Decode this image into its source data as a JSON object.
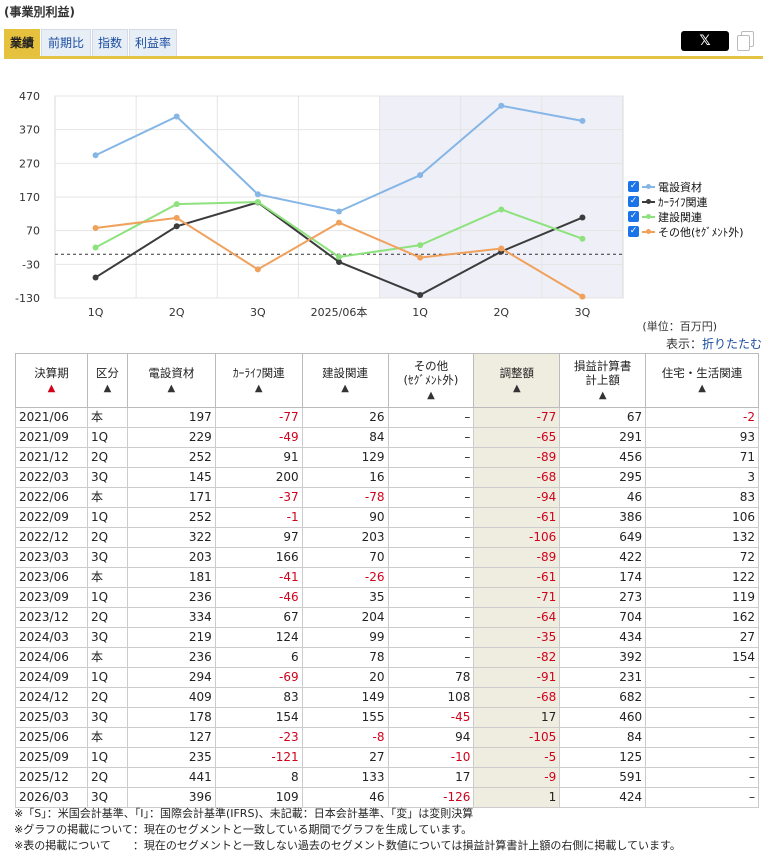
{
  "page_title": "(事業別利益)",
  "tabs": [
    {
      "label": "業績",
      "active": true
    },
    {
      "label": "前期比",
      "active": false
    },
    {
      "label": "指数",
      "active": false
    },
    {
      "label": "利益率",
      "active": false
    }
  ],
  "share": {
    "x_label": "𝕏"
  },
  "chart_data": {
    "type": "line",
    "categories": [
      "1Q",
      "2Q",
      "3Q",
      "2025/06本",
      "1Q",
      "2Q",
      "3Q"
    ],
    "y_ticks": [
      470,
      370,
      270,
      170,
      70,
      -30,
      -130
    ],
    "ylim": [
      -130,
      470
    ],
    "shaded_from_index": 4,
    "zero_line": 0,
    "series": [
      {
        "name": "電設資材",
        "color": "#86b6e6",
        "values": [
          294,
          409,
          178,
          127,
          235,
          441,
          396
        ]
      },
      {
        "name": "ｶｰﾗｲﾌ関連",
        "color": "#3c3c3c",
        "values": [
          -69,
          83,
          154,
          -23,
          -121,
          8,
          109
        ]
      },
      {
        "name": "建設関連",
        "color": "#8ee27d",
        "values": [
          20,
          149,
          155,
          -8,
          27,
          133,
          46
        ]
      },
      {
        "name": "その他(ｾｸﾞﾒﾝﾄ外)",
        "color": "#f0a15c",
        "values": [
          78,
          108,
          -45,
          94,
          -10,
          17,
          -126
        ]
      }
    ]
  },
  "unit_label": "(単位：百万円)",
  "display_label": "表示：",
  "collapse_link": "折りたたむ",
  "table": {
    "headers": [
      {
        "label": "決算期",
        "tri": "▲",
        "tri_red": true
      },
      {
        "label": "区分",
        "tri": "▲"
      },
      {
        "label": "電設資材",
        "tri": "▲"
      },
      {
        "label": "ｶｰﾗｲﾌ関連",
        "tri": "▲"
      },
      {
        "label": "建設関連",
        "tri": "▲"
      },
      {
        "label": "その他",
        "label2": "(ｾｸﾞﾒﾝﾄ外)",
        "tri": "▲"
      },
      {
        "label": "調整額",
        "tri": "▲"
      },
      {
        "label": "損益計算書",
        "label2": "計上額",
        "tri": "▲"
      },
      {
        "label": "住宅・生活関連",
        "tri": "▲"
      }
    ],
    "rows": [
      [
        "2021/06",
        "本",
        "197",
        "-77",
        "26",
        "–",
        "-77",
        "67",
        "-2"
      ],
      [
        "2021/09",
        "1Q",
        "229",
        "-49",
        "84",
        "–",
        "-65",
        "291",
        "93"
      ],
      [
        "2021/12",
        "2Q",
        "252",
        "91",
        "129",
        "–",
        "-89",
        "456",
        "71"
      ],
      [
        "2022/03",
        "3Q",
        "145",
        "200",
        "16",
        "–",
        "-68",
        "295",
        "3"
      ],
      [
        "2022/06",
        "本",
        "171",
        "-37",
        "-78",
        "–",
        "-94",
        "46",
        "83"
      ],
      [
        "2022/09",
        "1Q",
        "252",
        "-1",
        "90",
        "–",
        "-61",
        "386",
        "106"
      ],
      [
        "2022/12",
        "2Q",
        "322",
        "97",
        "203",
        "–",
        "-106",
        "649",
        "132"
      ],
      [
        "2023/03",
        "3Q",
        "203",
        "166",
        "70",
        "–",
        "-89",
        "422",
        "72"
      ],
      [
        "2023/06",
        "本",
        "181",
        "-41",
        "-26",
        "–",
        "-61",
        "174",
        "122"
      ],
      [
        "2023/09",
        "1Q",
        "236",
        "-46",
        "35",
        "–",
        "-71",
        "273",
        "119"
      ],
      [
        "2023/12",
        "2Q",
        "334",
        "67",
        "204",
        "–",
        "-64",
        "704",
        "162"
      ],
      [
        "2024/03",
        "3Q",
        "219",
        "124",
        "99",
        "–",
        "-35",
        "434",
        "27"
      ],
      [
        "2024/06",
        "本",
        "236",
        "6",
        "78",
        "–",
        "-82",
        "392",
        "154"
      ],
      [
        "2024/09",
        "1Q",
        "294",
        "-69",
        "20",
        "78",
        "-91",
        "231",
        "–"
      ],
      [
        "2024/12",
        "2Q",
        "409",
        "83",
        "149",
        "108",
        "-68",
        "682",
        "–"
      ],
      [
        "2025/03",
        "3Q",
        "178",
        "154",
        "155",
        "-45",
        "17",
        "460",
        "–"
      ],
      [
        "2025/06",
        "本",
        "127",
        "-23",
        "-8",
        "94",
        "-105",
        "84",
        "–"
      ],
      [
        "2025/09",
        "1Q",
        "235",
        "-121",
        "27",
        "-10",
        "-5",
        "125",
        "–"
      ],
      [
        "2025/12",
        "2Q",
        "441",
        "8",
        "133",
        "17",
        "-9",
        "591",
        "–"
      ],
      [
        "2026/03",
        "3Q",
        "396",
        "109",
        "46",
        "-126",
        "1",
        "424",
        "–"
      ]
    ]
  },
  "notes": [
    "※「S」：米国会計基準、「I」：国際会計基準(IFRS)、未記載：日本会計基準、「変」は変則決算",
    "※グラフの掲載について：現在のセグメントと一致している期間でグラフを生成しています。",
    "※表の掲載について　　：現在のセグメントと一致しない過去のセグメント数値については損益計算書計上額の右側に掲載しています。"
  ]
}
